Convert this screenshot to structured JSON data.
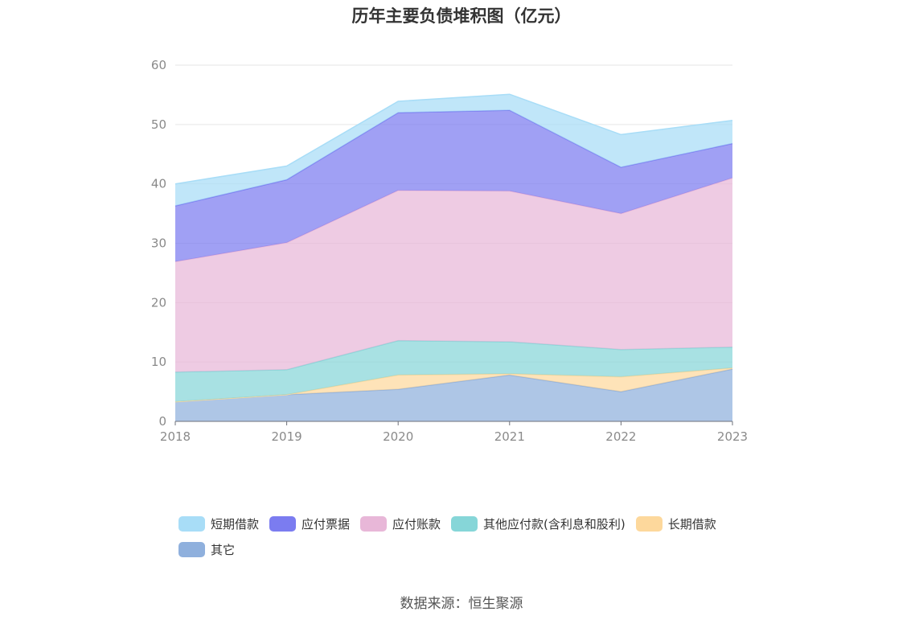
{
  "chart_data": {
    "type": "area",
    "stacked": true,
    "title": "历年主要负债堆积图（亿元）",
    "categories": [
      "2018",
      "2019",
      "2020",
      "2021",
      "2022",
      "2023"
    ],
    "ylim": [
      0,
      60
    ],
    "yticks": [
      0,
      10,
      20,
      30,
      40,
      50,
      60
    ],
    "grid": true,
    "legend_position": "bottom",
    "series": [
      {
        "name": "其它",
        "color": "#8fb0dd",
        "values": [
          3.3,
          4.5,
          5.4,
          7.8,
          5.0,
          8.8
        ]
      },
      {
        "name": "长期借款",
        "color": "#fdd89c",
        "values": [
          0.0,
          0.0,
          2.4,
          0.2,
          2.5,
          0.2
        ]
      },
      {
        "name": "其他应付款(含利息和股利)",
        "color": "#86d6d8",
        "values": [
          5.0,
          4.2,
          5.8,
          5.4,
          4.6,
          3.5
        ]
      },
      {
        "name": "应付账款",
        "color": "#e8b7d8",
        "values": [
          18.6,
          21.4,
          25.3,
          25.4,
          22.9,
          28.5
        ]
      },
      {
        "name": "应付票据",
        "color": "#7b7cf0",
        "values": [
          9.4,
          10.6,
          13.1,
          13.6,
          7.8,
          5.8
        ]
      },
      {
        "name": "短期借款",
        "color": "#a8ddf7",
        "values": [
          3.7,
          2.3,
          1.9,
          2.7,
          5.5,
          3.9
        ]
      }
    ]
  },
  "legend_order": [
    5,
    4,
    3,
    2,
    1,
    0
  ],
  "source": "数据来源：恒生聚源"
}
